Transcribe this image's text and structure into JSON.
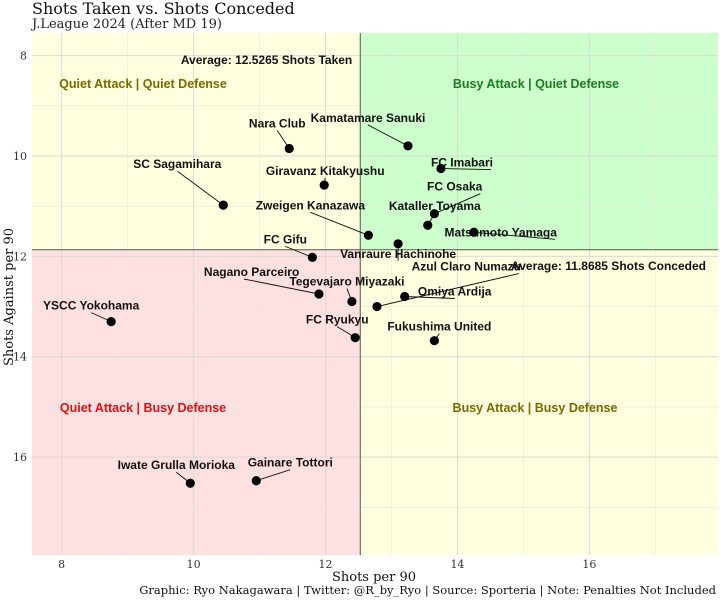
{
  "title": "Shots Taken vs. Shots Conceded",
  "subtitle": "J.League 2024 (After MD 19)",
  "caption": "Graphic: Ryo Nakagawara | Twitter: @R_by_Ryo | Source: Sporteria | Note: Penalties Not Included",
  "chart_data": {
    "type": "scatter",
    "xlabel": "Shots per 90",
    "ylabel": "Shots Against per 90",
    "xlim": [
      7.55,
      17.95
    ],
    "ylim": [
      7.55,
      17.95
    ],
    "y_reversed": true,
    "x_ticks": [
      8,
      10,
      12,
      14,
      16
    ],
    "y_ticks": [
      8,
      10,
      12,
      14,
      16
    ],
    "grid": true,
    "avg_x": 12.5265,
    "avg_y": 11.8685,
    "avg_x_label": "Average: 12.5265 Shots Taken",
    "avg_y_label": "Average: 11.8685 Shots Conceded",
    "quadrants": [
      {
        "name": "Quiet Attack | Quiet Defense",
        "fill": "#ffffe0",
        "color": "#7a6a00"
      },
      {
        "name": "Busy Attack | Quiet Defense",
        "fill": "#ccffcc",
        "color": "#1f7a1f"
      },
      {
        "name": "Quiet Attack | Busy Defense",
        "fill": "#ffe0e0",
        "color": "#dd1111"
      },
      {
        "name": "Busy Attack | Busy Defense",
        "fill": "#ffffe0",
        "color": "#7a6a00"
      }
    ],
    "points": [
      {
        "team": "Kamatamare Sanuki",
        "x": 13.25,
        "y": 9.8
      },
      {
        "team": "Nara Club",
        "x": 11.45,
        "y": 9.85
      },
      {
        "team": "FC Imabari",
        "x": 13.75,
        "y": 10.25
      },
      {
        "team": "SC Sagamihara",
        "x": 10.45,
        "y": 10.98
      },
      {
        "team": "Giravanz Kitakyushu",
        "x": 11.98,
        "y": 10.58
      },
      {
        "team": "FC Osaka",
        "x": 13.65,
        "y": 11.15
      },
      {
        "team": "Zweigen Kanazawa",
        "x": 12.65,
        "y": 11.58
      },
      {
        "team": "Kataller Toyama",
        "x": 13.55,
        "y": 11.38
      },
      {
        "team": "Matsumoto Yamaga",
        "x": 14.25,
        "y": 11.52
      },
      {
        "team": "FC Gifu",
        "x": 11.8,
        "y": 12.02
      },
      {
        "team": "Vanraure Hachinohe",
        "x": 13.1,
        "y": 11.75
      },
      {
        "team": "Azul Claro Numazu",
        "x": 12.78,
        "y": 13.0
      },
      {
        "team": "Nagano Parceiro",
        "x": 11.9,
        "y": 12.75
      },
      {
        "team": "Tegevajaro Miyazaki",
        "x": 12.4,
        "y": 12.9
      },
      {
        "team": "Omiya Ardija",
        "x": 13.2,
        "y": 12.8
      },
      {
        "team": "YSCC Yokohama",
        "x": 8.75,
        "y": 13.3
      },
      {
        "team": "FC Ryukyu",
        "x": 12.45,
        "y": 13.62
      },
      {
        "team": "Fukushima United",
        "x": 13.65,
        "y": 13.68
      },
      {
        "team": "Iwate Grulla Morioka",
        "x": 9.95,
        "y": 16.52
      },
      {
        "team": "Gainare Tottori",
        "x": 10.95,
        "y": 16.47
      }
    ]
  }
}
